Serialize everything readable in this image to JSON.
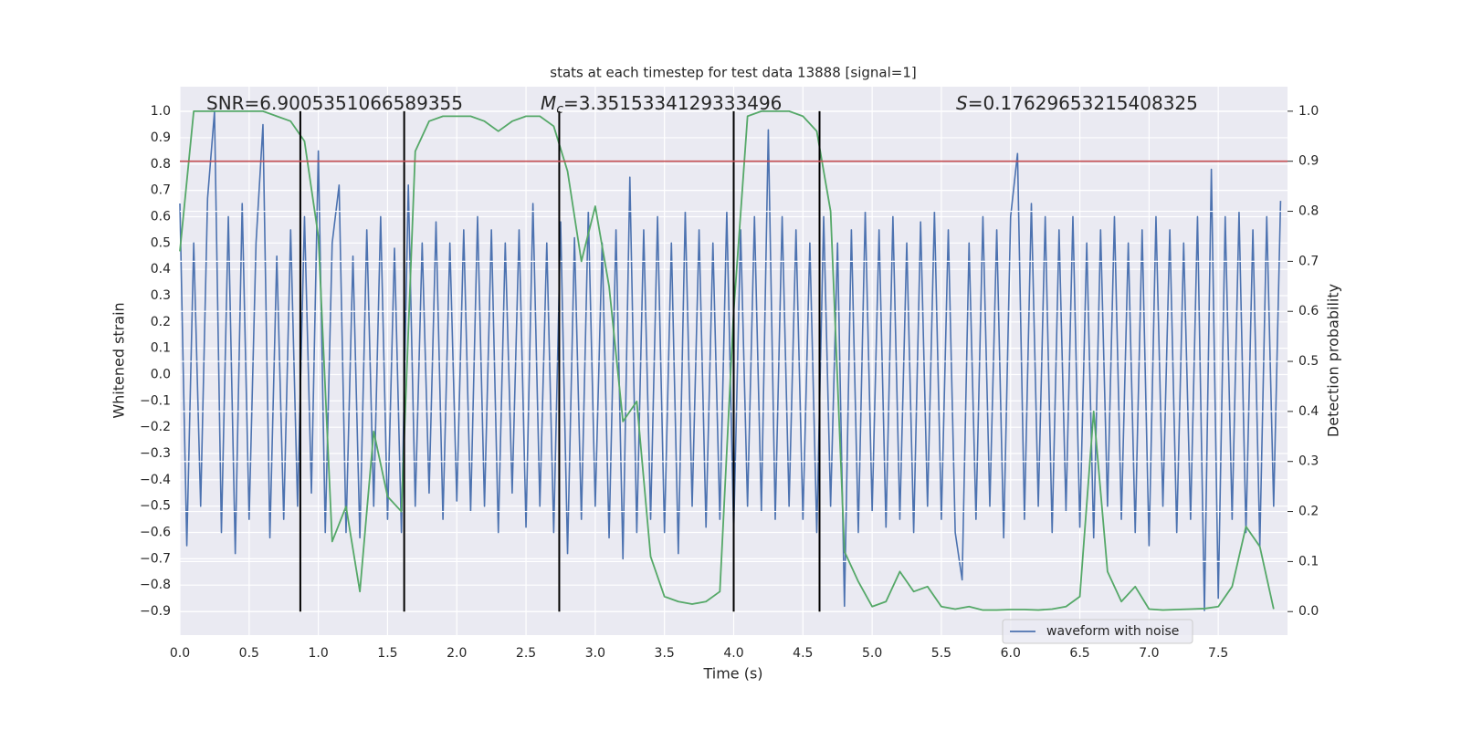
{
  "chart_data": {
    "type": "line",
    "title": "stats at each timestep for test data 13888 [signal=1]",
    "xlabel": "Time (s)",
    "ylabel": "Whitened strain",
    "y2label": "Detection probability",
    "xlim": [
      0,
      8
    ],
    "ylim": [
      -0.99,
      1.094
    ],
    "y2lim": [
      -0.047,
      1.049
    ],
    "grid": true,
    "legend": "lower right",
    "xticks": [
      {
        "value": 0,
        "label": "0.0"
      },
      {
        "value": 0.5,
        "label": "0.5"
      },
      {
        "value": 1,
        "label": "1.0"
      },
      {
        "value": 1.5,
        "label": "1.5"
      },
      {
        "value": 2,
        "label": "2.0"
      },
      {
        "value": 2.5,
        "label": "2.5"
      },
      {
        "value": 3,
        "label": "3.0"
      },
      {
        "value": 3.5,
        "label": "3.5"
      },
      {
        "value": 4,
        "label": "4.0"
      },
      {
        "value": 4.5,
        "label": "4.5"
      },
      {
        "value": 5,
        "label": "5.0"
      },
      {
        "value": 5.5,
        "label": "5.5"
      },
      {
        "value": 6,
        "label": "6.0"
      },
      {
        "value": 6.5,
        "label": "6.5"
      },
      {
        "value": 7,
        "label": "7.0"
      },
      {
        "value": 7.5,
        "label": "7.5"
      }
    ],
    "yticks": [
      {
        "value": -0.9,
        "label": "−0.9"
      },
      {
        "value": -0.8,
        "label": "−0.8"
      },
      {
        "value": -0.7,
        "label": "−0.7"
      },
      {
        "value": -0.6,
        "label": "−0.6"
      },
      {
        "value": -0.5,
        "label": "−0.5"
      },
      {
        "value": -0.4,
        "label": "−0.4"
      },
      {
        "value": -0.3,
        "label": "−0.3"
      },
      {
        "value": -0.2,
        "label": "−0.2"
      },
      {
        "value": -0.1,
        "label": "−0.1"
      },
      {
        "value": 0,
        "label": "0.0"
      },
      {
        "value": 0.1,
        "label": "0.1"
      },
      {
        "value": 0.2,
        "label": "0.2"
      },
      {
        "value": 0.3,
        "label": "0.3"
      },
      {
        "value": 0.4,
        "label": "0.4"
      },
      {
        "value": 0.5,
        "label": "0.5"
      },
      {
        "value": 0.6,
        "label": "0.6"
      },
      {
        "value": 0.7,
        "label": "0.7"
      },
      {
        "value": 0.8,
        "label": "0.8"
      },
      {
        "value": 0.9,
        "label": "0.9"
      },
      {
        "value": 1,
        "label": "1.0"
      }
    ],
    "y2ticks": [
      {
        "value": 0,
        "label": "0.0"
      },
      {
        "value": 0.1,
        "label": "0.1"
      },
      {
        "value": 0.2,
        "label": "0.2"
      },
      {
        "value": 0.3,
        "label": "0.3"
      },
      {
        "value": 0.4,
        "label": "0.4"
      },
      {
        "value": 0.5,
        "label": "0.5"
      },
      {
        "value": 0.6,
        "label": "0.6"
      },
      {
        "value": 0.7,
        "label": "0.7"
      },
      {
        "value": 0.8,
        "label": "0.8"
      },
      {
        "value": 0.9,
        "label": "0.9"
      },
      {
        "value": 1,
        "label": "1.0"
      }
    ],
    "annotations": [
      {
        "text": "SNR=6.9005351066589355"
      },
      {
        "italic": "M",
        "sub": "c",
        "text": "=3.3515334129333496"
      },
      {
        "italic": "S",
        "text": "=0.17629653215408325"
      }
    ],
    "series": [
      {
        "name": "waveform with noise",
        "color": "#4c72b0",
        "x": [
          0,
          0.05,
          0.1,
          0.15,
          0.2,
          0.25,
          0.3,
          0.35,
          0.4,
          0.45,
          0.5,
          0.55,
          0.6,
          0.65,
          0.7,
          0.75,
          0.8,
          0.85,
          0.9,
          0.95,
          1,
          1.05,
          1.1,
          1.15,
          1.2,
          1.25,
          1.3,
          1.35,
          1.4,
          1.45,
          1.5,
          1.55,
          1.6,
          1.65,
          1.7,
          1.75,
          1.8,
          1.85,
          1.9,
          1.95,
          2,
          2.05,
          2.1,
          2.15,
          2.2,
          2.25,
          2.3,
          2.35,
          2.4,
          2.45,
          2.5,
          2.55,
          2.6,
          2.65,
          2.7,
          2.75,
          2.8,
          2.85,
          2.9,
          2.95,
          3,
          3.05,
          3.1,
          3.15,
          3.2,
          3.25,
          3.3,
          3.35,
          3.4,
          3.45,
          3.5,
          3.55,
          3.6,
          3.65,
          3.7,
          3.75,
          3.8,
          3.85,
          3.9,
          3.95,
          4,
          4.05,
          4.1,
          4.15,
          4.2,
          4.25,
          4.3,
          4.35,
          4.4,
          4.45,
          4.5,
          4.55,
          4.6,
          4.65,
          4.7,
          4.75,
          4.8,
          4.85,
          4.9,
          4.95,
          5,
          5.05,
          5.1,
          5.15,
          5.2,
          5.25,
          5.3,
          5.35,
          5.4,
          5.45,
          5.5,
          5.55,
          5.6,
          5.65,
          5.7,
          5.75,
          5.8,
          5.85,
          5.9,
          5.95,
          6,
          6.05,
          6.1,
          6.15,
          6.2,
          6.25,
          6.3,
          6.35,
          6.4,
          6.45,
          6.5,
          6.55,
          6.6,
          6.65,
          6.7,
          6.75,
          6.8,
          6.85,
          6.9,
          6.95,
          7,
          7.05,
          7.1,
          7.15,
          7.2,
          7.25,
          7.3,
          7.35,
          7.4,
          7.45,
          7.5,
          7.55,
          7.6,
          7.65,
          7.7,
          7.75,
          7.8,
          7.85,
          7.9,
          7.95
        ],
        "values": [
          0.65,
          -0.65,
          0.5,
          -0.5,
          0.67,
          1.0,
          -0.6,
          0.6,
          -0.68,
          0.65,
          -0.55,
          0.5,
          0.95,
          -0.62,
          0.45,
          -0.55,
          0.55,
          -0.5,
          0.6,
          -0.45,
          0.85,
          -0.6,
          0.5,
          0.72,
          -0.6,
          0.45,
          -0.62,
          0.55,
          -0.5,
          0.6,
          -0.55,
          0.48,
          -0.6,
          0.72,
          -0.5,
          0.5,
          -0.45,
          0.58,
          -0.55,
          0.5,
          -0.48,
          0.55,
          -0.52,
          0.6,
          -0.5,
          0.55,
          -0.6,
          0.5,
          -0.45,
          0.55,
          -0.58,
          0.65,
          -0.5,
          0.5,
          -0.6,
          0.58,
          -0.68,
          0.52,
          -0.55,
          0.62,
          -0.5,
          0.5,
          -0.62,
          0.55,
          -0.7,
          0.75,
          -0.6,
          0.55,
          -0.55,
          0.6,
          -0.6,
          0.5,
          -0.68,
          0.62,
          -0.5,
          0.55,
          -0.58,
          0.5,
          -0.55,
          0.62,
          -0.6,
          0.55,
          -0.5,
          0.6,
          -0.52,
          0.93,
          -0.55,
          0.6,
          -0.5,
          0.55,
          -0.55,
          0.5,
          -0.6,
          0.6,
          -0.5,
          0.5,
          -0.88,
          0.55,
          -0.6,
          0.62,
          -0.52,
          0.55,
          -0.58,
          0.6,
          -0.55,
          0.5,
          -0.6,
          0.58,
          -0.5,
          0.62,
          -0.55,
          0.55,
          -0.6,
          -0.78,
          0.5,
          -0.55,
          0.6,
          -0.5,
          0.55,
          -0.62,
          0.6,
          0.84,
          -0.55,
          0.65,
          -0.5,
          0.6,
          -0.6,
          0.55,
          -0.52,
          0.6,
          -0.58,
          0.5,
          -0.62,
          0.55,
          -0.5,
          0.6,
          -0.55,
          0.5,
          -0.6,
          0.55,
          -0.65,
          0.6,
          -0.5,
          0.55,
          -0.6,
          0.5,
          -0.55,
          0.6,
          -0.9,
          0.78,
          -0.85,
          0.6,
          -0.55,
          0.62,
          -0.6,
          0.55,
          -0.65,
          0.6,
          -0.5,
          0.66
        ]
      },
      {
        "color": "#55a868",
        "axis": "y2",
        "x": [
          0,
          0.1,
          0.2,
          0.3,
          0.4,
          0.5,
          0.6,
          0.7,
          0.8,
          0.9,
          1,
          1.1,
          1.2,
          1.3,
          1.4,
          1.5,
          1.6,
          1.7,
          1.8,
          1.9,
          2,
          2.1,
          2.2,
          2.3,
          2.4,
          2.5,
          2.6,
          2.7,
          2.8,
          2.9,
          3,
          3.1,
          3.2,
          3.3,
          3.4,
          3.5,
          3.6,
          3.7,
          3.8,
          3.9,
          4,
          4.1,
          4.2,
          4.3,
          4.4,
          4.5,
          4.6,
          4.7,
          4.8,
          4.9,
          5,
          5.1,
          5.2,
          5.3,
          5.4,
          5.5,
          5.6,
          5.7,
          5.8,
          5.9,
          6,
          6.1,
          6.2,
          6.3,
          6.4,
          6.5,
          6.6,
          6.7,
          6.8,
          6.9,
          7,
          7.1,
          7.2,
          7.3,
          7.4,
          7.5,
          7.6,
          7.7,
          7.8,
          7.9
        ],
        "values": [
          0.72,
          1.0,
          1.0,
          1.0,
          1.0,
          1.0,
          1.0,
          0.99,
          0.98,
          0.94,
          0.75,
          0.14,
          0.21,
          0.04,
          0.36,
          0.23,
          0.2,
          0.92,
          0.98,
          0.99,
          0.99,
          0.99,
          0.98,
          0.96,
          0.98,
          0.99,
          0.99,
          0.97,
          0.88,
          0.7,
          0.81,
          0.65,
          0.38,
          0.42,
          0.11,
          0.03,
          0.02,
          0.015,
          0.02,
          0.04,
          0.6,
          0.99,
          1.0,
          1.0,
          1.0,
          0.99,
          0.96,
          0.8,
          0.12,
          0.06,
          0.01,
          0.02,
          0.08,
          0.04,
          0.05,
          0.01,
          0.005,
          0.01,
          0.003,
          0.003,
          0.004,
          0.004,
          0.003,
          0.005,
          0.01,
          0.03,
          0.4,
          0.08,
          0.02,
          0.05,
          0.005,
          0.003,
          0.004,
          0.005,
          0.006,
          0.01,
          0.05,
          0.17,
          0.13,
          0.005
        ]
      }
    ],
    "vlines": {
      "x": [
        0.87,
        1.62,
        2.74,
        4.0,
        4.62
      ],
      "ymin": 0,
      "ymax": 1,
      "axis": "y2",
      "color": "#000000"
    },
    "hline": {
      "y": 0.9,
      "axis": "y2",
      "color": "#c44e52"
    }
  }
}
